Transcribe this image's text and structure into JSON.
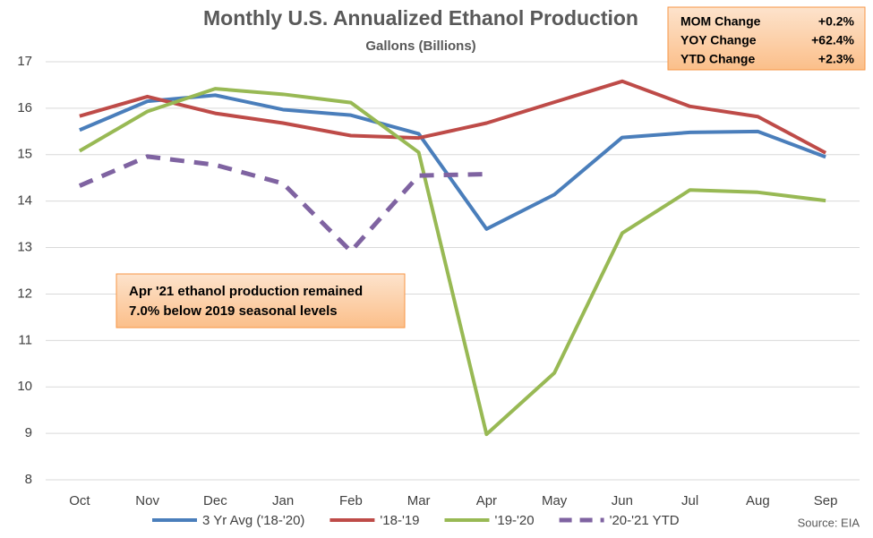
{
  "chart_data": {
    "type": "line",
    "title": "Monthly U.S. Annualized Ethanol Production",
    "subtitle": "Gallons (Billions)",
    "categories": [
      "Oct",
      "Nov",
      "Dec",
      "Jan",
      "Feb",
      "Mar",
      "Apr",
      "May",
      "Jun",
      "Jul",
      "Aug",
      "Sep"
    ],
    "series": [
      {
        "name": "3 Yr Avg ('18-'20)",
        "color": "#4a7ebb",
        "values": [
          15.53,
          16.15,
          16.28,
          15.97,
          15.85,
          15.45,
          13.4,
          14.14,
          15.37,
          15.48,
          15.5,
          14.95
        ]
      },
      {
        "name": "'18-'19",
        "color": "#be4b48",
        "values": [
          15.83,
          16.25,
          15.89,
          15.68,
          15.41,
          15.36,
          15.68,
          16.13,
          16.58,
          16.04,
          15.82,
          15.04
        ]
      },
      {
        "name": "'19-'20",
        "color": "#98b954",
        "values": [
          15.08,
          15.93,
          16.42,
          16.3,
          16.12,
          15.05,
          8.98,
          10.3,
          13.31,
          14.24,
          14.19,
          14.01
        ]
      },
      {
        "name": "'20-'21 YTD",
        "color": "#7f63a1",
        "dashed": true,
        "values": [
          14.33,
          14.96,
          14.78,
          14.38,
          12.92,
          14.55,
          14.58,
          null,
          null,
          null,
          null,
          null
        ]
      }
    ],
    "ylim": [
      8,
      17
    ],
    "yticks": [
      8,
      9,
      10,
      11,
      12,
      13,
      14,
      15,
      16,
      17
    ],
    "grid": true,
    "legend": "bottom",
    "annotation": [
      "Apr '21 ethanol production remained",
      "7.0% below 2019 seasonal levels"
    ],
    "stats": [
      {
        "label": "MOM Change",
        "value": "+0.2%"
      },
      {
        "label": "YOY Change",
        "value": "+62.4%"
      },
      {
        "label": "YTD Change",
        "value": "+2.3%"
      }
    ],
    "source": "Source: EIA"
  }
}
